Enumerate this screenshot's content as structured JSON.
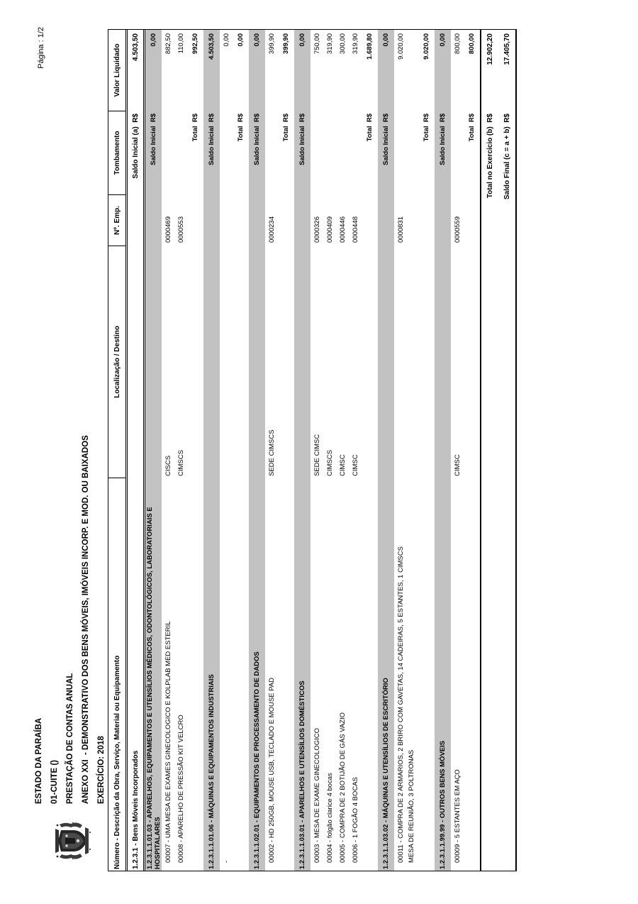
{
  "page": {
    "pagina_label": "Página : 1/2"
  },
  "header": {
    "logo_name": "coat-of-arms",
    "line1": "ESTADO DA PARAÍBA",
    "line2": "01-CUITE ()",
    "line3": "PRESTAÇÃO DE CONTAS ANUAL",
    "line4": "ANEXO XXI  - DEMONSTRATIVO DOS BENS MÓVEIS, IMÓVEIS INCORP. E MOD. OU BAIXADOS",
    "line5": "EXERCÍCIO: 2018"
  },
  "colors": {
    "section_band_gray": "#c2c2c2",
    "border_black": "#000000",
    "page_background": "#ffffff"
  },
  "table": {
    "columns": [
      "Número - Descrição da Obra, Serviço, Material ou Equipamento",
      "Localização / Destino",
      "Nº. Emp.",
      "Tombamento",
      "Valor Liquidado"
    ],
    "rows": [
      {
        "type": "opening",
        "desc": "1.2.3.1 - Bens Móveis Incorporados",
        "loc": "",
        "emp": "",
        "tomb": "Saldo Inicial (a)  R$",
        "valor": "4.503,50"
      },
      {
        "type": "section",
        "desc": "1.2.3.1.1.01.03 - APARELHOS, EQUIPAMENTOS E UTENSÍLIOS MÉDICOS, ODONTOLÓGICOS, LABORATORIAIS E HOSPITALARES",
        "loc": "",
        "emp": "",
        "tomb": "Saldo Inicial  R$",
        "valor": "0,00"
      },
      {
        "type": "item",
        "desc": "00007 - UMA MESA DE EXAMES GINECOLOGICO E KOLPLAB MED ESTERIL",
        "loc": "CISCS",
        "emp": "0000469",
        "tomb": "",
        "valor": "882,50"
      },
      {
        "type": "item",
        "desc": "00008 - APARELHO DE PRESSÃO KIT VELCRO",
        "loc": "CIMSCS",
        "emp": "0000553",
        "tomb": "",
        "valor": "110,00"
      },
      {
        "type": "total",
        "desc": "",
        "loc": "",
        "emp": "",
        "tomb": "Total  R$",
        "valor": "992,50"
      },
      {
        "type": "section",
        "desc": "1.2.3.1.1.01.06 - MÁQUINAS E EQUIPAMENTOS INDUSTRIAIS",
        "loc": "",
        "emp": "",
        "tomb": "Saldo Inicial  R$",
        "valor": "4.503,50"
      },
      {
        "type": "item",
        "desc": "-",
        "loc": "",
        "emp": "",
        "tomb": "",
        "valor": "0,00"
      },
      {
        "type": "total",
        "desc": "",
        "loc": "",
        "emp": "",
        "tomb": "Total  R$",
        "valor": "0,00"
      },
      {
        "type": "section",
        "desc": "1.2.3.1.1.02.01 - EQUIPAMENTOS DE PROCESSAMENTO DE DADOS",
        "loc": "",
        "emp": "",
        "tomb": "Saldo Inicial  R$",
        "valor": "0,00"
      },
      {
        "type": "item",
        "desc": "00002 - HD 250GB, MOUSE USB, TECLADO E MOUSE PAD",
        "loc": "SEDE CIMSCS",
        "emp": "0000234",
        "tomb": "",
        "valor": "399,90"
      },
      {
        "type": "total",
        "desc": "",
        "loc": "",
        "emp": "",
        "tomb": "Total  R$",
        "valor": "399,90"
      },
      {
        "type": "section",
        "desc": "1.2.3.1.1.03.01 - APARELHOS E UTENSÍLIOS DOMÉSTICOS",
        "loc": "",
        "emp": "",
        "tomb": "Saldo Inicial  R$",
        "valor": "0,00"
      },
      {
        "type": "item",
        "desc": "00003 - MESA DE EXAME GINECOLOGICO",
        "loc": "SEDE CIMSC",
        "emp": "0000326",
        "tomb": "",
        "valor": "750,00"
      },
      {
        "type": "item",
        "desc": "00004 - folgão clarice 4 bocas",
        "loc": "CIMSCS",
        "emp": "0000409",
        "tomb": "",
        "valor": "319,90"
      },
      {
        "type": "item",
        "desc": "00005 - COMPRA DE 2 BOTIJÃO DE GÁS VAZIO",
        "loc": "CIMSC",
        "emp": "0000446",
        "tomb": "",
        "valor": "300,00"
      },
      {
        "type": "item",
        "desc": "00006 - 1 FOGÃO 4 BOCAS",
        "loc": "CIMSC",
        "emp": "0000448",
        "tomb": "",
        "valor": "319,90"
      },
      {
        "type": "total",
        "desc": "",
        "loc": "",
        "emp": "",
        "tomb": "Total  R$",
        "valor": "1.689,80"
      },
      {
        "type": "section",
        "desc": "1.2.3.1.1.03.02 - MÁQUINAS E UTENSÍLIOS DE ESCRITÓRIO",
        "loc": "",
        "emp": "",
        "tomb": "Saldo Inicial  R$",
        "valor": "0,00"
      },
      {
        "type": "item",
        "desc": "00011 - COMPRA DE 2 ARMARIOS, 2 BRIRO COM GAVETAS, 14 CADEIRAS, 5 ESTANTES, 1 CIMSCS\nMESA DE REUNIÃO, 3 POLTRONAS",
        "loc": "",
        "emp": "0000831",
        "tomb": "",
        "valor": "9.020,00"
      },
      {
        "type": "total",
        "desc": "",
        "loc": "",
        "emp": "",
        "tomb": "Total  R$",
        "valor": "9.020,00"
      },
      {
        "type": "section",
        "desc": "1.2.3.1.1.99.99 - OUTROS BENS MÓVEIS",
        "loc": "",
        "emp": "",
        "tomb": "Saldo Inicial  R$",
        "valor": "0,00"
      },
      {
        "type": "item",
        "desc": "00009 - 5 ESTANTES EM AÇO",
        "loc": "CIMSC",
        "emp": "0000559",
        "tomb": "",
        "valor": "800,00"
      },
      {
        "type": "total",
        "desc": "",
        "loc": "",
        "emp": "",
        "tomb": "Total  R$",
        "valor": "800,00"
      },
      {
        "type": "footer",
        "desc": "",
        "loc": "",
        "emp": "",
        "tomb": "Total no Exercício (b)  R$",
        "valor": "12.902,20"
      },
      {
        "type": "footer2",
        "desc": "",
        "loc": "",
        "emp": "",
        "tomb": "Saldo Final (c = a + b)  R$",
        "valor": "17.405,70"
      }
    ]
  }
}
